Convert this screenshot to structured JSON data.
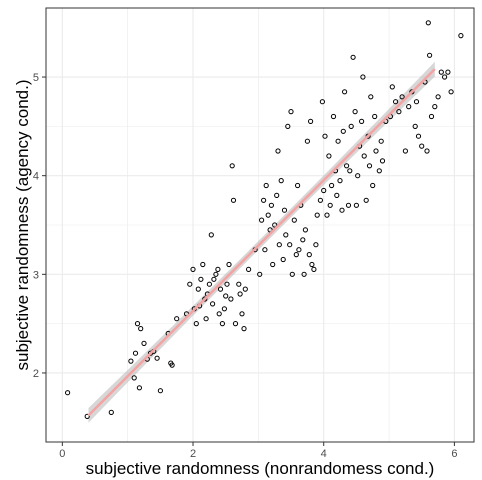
{
  "chart_data": {
    "type": "scatter",
    "title": "",
    "xlabel": "subjective randomness (nonrandomess cond.)",
    "ylabel": "subjective randomness (agency cond.)",
    "xlim": [
      -0.25,
      6.3
    ],
    "ylim": [
      1.3,
      5.7
    ],
    "x_ticks": [
      0,
      2,
      4,
      6
    ],
    "y_ticks": [
      2,
      3,
      4,
      5
    ],
    "grid": true,
    "legend": "none",
    "colors": {
      "point_stroke": "#000000",
      "trend_line": "#f4a3a3",
      "confidence_band": "#bdbdbd",
      "grid": "#ebebeb",
      "panel_border": "#333333"
    },
    "trend": {
      "x": [
        0.4,
        5.7
      ],
      "y": [
        1.57,
        5.08
      ]
    },
    "points": [
      [
        0.08,
        1.8
      ],
      [
        0.38,
        1.56
      ],
      [
        0.75,
        1.6
      ],
      [
        1.05,
        2.12
      ],
      [
        1.1,
        1.95
      ],
      [
        1.12,
        2.2
      ],
      [
        1.15,
        2.5
      ],
      [
        1.18,
        1.85
      ],
      [
        1.2,
        2.45
      ],
      [
        1.25,
        2.3
      ],
      [
        1.3,
        2.14
      ],
      [
        1.35,
        2.2
      ],
      [
        1.4,
        2.22
      ],
      [
        1.45,
        2.15
      ],
      [
        1.5,
        1.82
      ],
      [
        1.62,
        2.4
      ],
      [
        1.66,
        2.1
      ],
      [
        1.68,
        2.08
      ],
      [
        1.75,
        2.55
      ],
      [
        1.9,
        2.6
      ],
      [
        1.95,
        2.9
      ],
      [
        2.0,
        3.05
      ],
      [
        2.02,
        2.65
      ],
      [
        2.05,
        2.5
      ],
      [
        2.08,
        2.85
      ],
      [
        2.1,
        2.68
      ],
      [
        2.12,
        2.95
      ],
      [
        2.15,
        3.1
      ],
      [
        2.18,
        2.75
      ],
      [
        2.2,
        2.55
      ],
      [
        2.22,
        2.8
      ],
      [
        2.25,
        2.9
      ],
      [
        2.28,
        3.4
      ],
      [
        2.3,
        2.7
      ],
      [
        2.32,
        2.95
      ],
      [
        2.35,
        3.0
      ],
      [
        2.38,
        3.05
      ],
      [
        2.4,
        2.6
      ],
      [
        2.42,
        2.85
      ],
      [
        2.45,
        2.5
      ],
      [
        2.48,
        2.65
      ],
      [
        2.5,
        2.78
      ],
      [
        2.52,
        2.9
      ],
      [
        2.55,
        3.1
      ],
      [
        2.58,
        2.75
      ],
      [
        2.6,
        4.1
      ],
      [
        2.62,
        3.75
      ],
      [
        2.65,
        2.5
      ],
      [
        2.7,
        2.9
      ],
      [
        2.72,
        2.8
      ],
      [
        2.75,
        2.6
      ],
      [
        2.78,
        2.45
      ],
      [
        2.8,
        2.85
      ],
      [
        2.85,
        3.05
      ],
      [
        2.95,
        3.25
      ],
      [
        3.02,
        3.0
      ],
      [
        3.05,
        3.55
      ],
      [
        3.08,
        3.75
      ],
      [
        3.1,
        3.25
      ],
      [
        3.12,
        3.9
      ],
      [
        3.15,
        3.6
      ],
      [
        3.18,
        3.45
      ],
      [
        3.2,
        3.7
      ],
      [
        3.22,
        3.1
      ],
      [
        3.25,
        3.5
      ],
      [
        3.28,
        3.8
      ],
      [
        3.3,
        4.25
      ],
      [
        3.32,
        3.3
      ],
      [
        3.35,
        3.95
      ],
      [
        3.38,
        3.15
      ],
      [
        3.4,
        3.65
      ],
      [
        3.42,
        3.4
      ],
      [
        3.45,
        4.5
      ],
      [
        3.48,
        3.3
      ],
      [
        3.5,
        4.65
      ],
      [
        3.52,
        3.0
      ],
      [
        3.55,
        3.55
      ],
      [
        3.58,
        3.2
      ],
      [
        3.6,
        3.9
      ],
      [
        3.62,
        3.25
      ],
      [
        3.65,
        3.7
      ],
      [
        3.68,
        3.35
      ],
      [
        3.7,
        3.0
      ],
      [
        3.72,
        3.45
      ],
      [
        3.75,
        4.35
      ],
      [
        3.78,
        3.2
      ],
      [
        3.8,
        4.55
      ],
      [
        3.82,
        3.1
      ],
      [
        3.85,
        3.05
      ],
      [
        3.88,
        3.3
      ],
      [
        3.9,
        3.6
      ],
      [
        3.95,
        3.75
      ],
      [
        3.98,
        4.75
      ],
      [
        4.0,
        3.85
      ],
      [
        4.02,
        4.4
      ],
      [
        4.05,
        3.6
      ],
      [
        4.08,
        4.2
      ],
      [
        4.1,
        3.7
      ],
      [
        4.12,
        3.9
      ],
      [
        4.15,
        4.6
      ],
      [
        4.18,
        4.05
      ],
      [
        4.2,
        3.8
      ],
      [
        4.22,
        4.35
      ],
      [
        4.25,
        3.95
      ],
      [
        4.28,
        3.65
      ],
      [
        4.3,
        4.45
      ],
      [
        4.32,
        4.85
      ],
      [
        4.35,
        4.1
      ],
      [
        4.38,
        3.7
      ],
      [
        4.4,
        4.05
      ],
      [
        4.42,
        4.5
      ],
      [
        4.45,
        5.2
      ],
      [
        4.48,
        4.65
      ],
      [
        4.5,
        3.7
      ],
      [
        4.52,
        4.0
      ],
      [
        4.55,
        4.3
      ],
      [
        4.58,
        4.55
      ],
      [
        4.6,
        5.0
      ],
      [
        4.62,
        4.2
      ],
      [
        4.65,
        3.75
      ],
      [
        4.68,
        4.4
      ],
      [
        4.7,
        4.1
      ],
      [
        4.72,
        4.8
      ],
      [
        4.75,
        3.9
      ],
      [
        4.78,
        4.6
      ],
      [
        4.8,
        4.25
      ],
      [
        4.85,
        4.05
      ],
      [
        4.88,
        4.35
      ],
      [
        4.9,
        4.15
      ],
      [
        4.95,
        4.55
      ],
      [
        5.02,
        4.6
      ],
      [
        5.05,
        4.9
      ],
      [
        5.1,
        4.75
      ],
      [
        5.15,
        4.65
      ],
      [
        5.2,
        4.8
      ],
      [
        5.25,
        4.25
      ],
      [
        5.3,
        4.7
      ],
      [
        5.35,
        4.85
      ],
      [
        5.4,
        4.5
      ],
      [
        5.42,
        4.75
      ],
      [
        5.45,
        4.4
      ],
      [
        5.5,
        4.3
      ],
      [
        5.55,
        4.95
      ],
      [
        5.58,
        4.25
      ],
      [
        5.6,
        5.55
      ],
      [
        5.62,
        5.22
      ],
      [
        5.65,
        4.6
      ],
      [
        5.7,
        4.7
      ],
      [
        5.75,
        4.8
      ],
      [
        5.8,
        5.05
      ],
      [
        5.85,
        5.0
      ],
      [
        5.9,
        5.05
      ],
      [
        5.95,
        4.85
      ],
      [
        6.1,
        5.42
      ]
    ]
  }
}
